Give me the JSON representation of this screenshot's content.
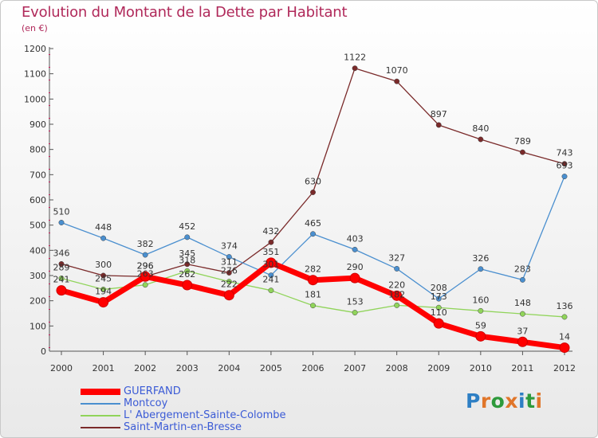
{
  "header": {
    "title": "Evolution du Montant de la Dette par Habitant",
    "subtitle": "(en €)"
  },
  "logo": {
    "text": "Proxiti",
    "letters": [
      "P",
      "r",
      "o",
      "x",
      "i",
      "t",
      "i"
    ],
    "colors": [
      "#2e7fc4",
      "#e0762a",
      "#2e9a3c",
      "#e0762a",
      "#2e7fc4",
      "#2e9a3c",
      "#e0762a"
    ]
  },
  "chart_data": {
    "type": "line",
    "title": "Evolution du Montant de la Dette par Habitant",
    "subtitle": "(en €)",
    "xlabel": "",
    "ylabel": "",
    "x": [
      "2000",
      "2001",
      "2002",
      "2003",
      "2004",
      "2005",
      "2006",
      "2007",
      "2008",
      "2009",
      "2010",
      "2011",
      "2012"
    ],
    "ylim": [
      0,
      1200
    ],
    "yticks": [
      0,
      100,
      200,
      300,
      400,
      500,
      600,
      700,
      800,
      900,
      1000,
      1100,
      1200
    ],
    "grid": false,
    "legend_position": "bottom-left",
    "series": [
      {
        "name": "GUERFAND",
        "color": "#ff0000",
        "values": [
          241,
          194,
          296,
          262,
          222,
          351,
          282,
          290,
          220,
          110,
          59,
          37,
          14
        ]
      },
      {
        "name": "Montcoy",
        "color": "#4a8fcf",
        "values": [
          510,
          448,
          382,
          452,
          374,
          301,
          465,
          403,
          327,
          208,
          326,
          283,
          693
        ]
      },
      {
        "name": "L' Abergement-Sainte-Colombe",
        "color": "#90d45a",
        "values": [
          289,
          245,
          263,
          318,
          276,
          241,
          181,
          153,
          182,
          173,
          160,
          148,
          136
        ]
      },
      {
        "name": "Saint-Martin-en-Bresse",
        "color": "#7a2a2a",
        "values": [
          346,
          300,
          296,
          345,
          311,
          432,
          630,
          1122,
          1070,
          897,
          840,
          789,
          743
        ]
      }
    ]
  }
}
